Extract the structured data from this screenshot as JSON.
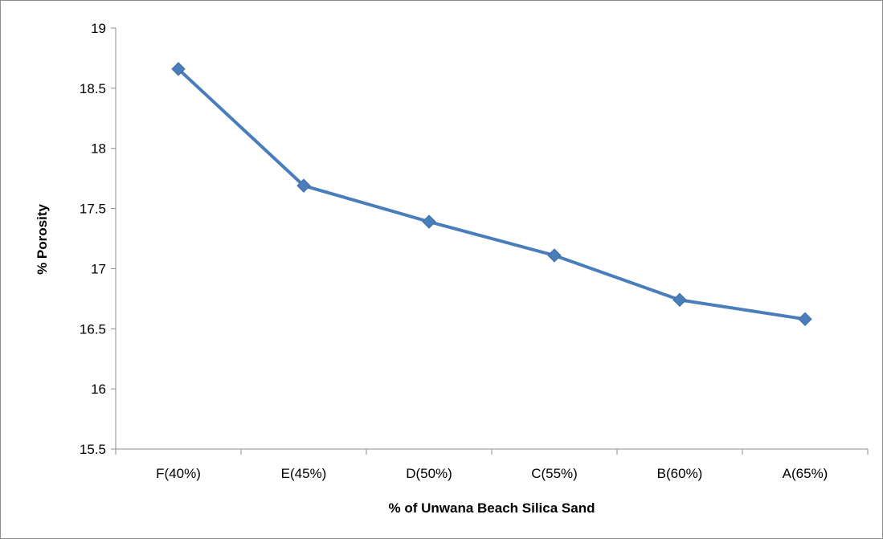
{
  "chart_data": {
    "type": "line",
    "title": "",
    "xlabel": "% of Unwana Beach Silica Sand",
    "ylabel": "% Porosity",
    "categories": [
      "F(40%)",
      "E(45%)",
      "D(50%)",
      "C(55%)",
      "B(60%)",
      "A(65%)"
    ],
    "series": [
      {
        "values": [
          18.66,
          17.69,
          17.39,
          17.11,
          16.74,
          16.58
        ]
      }
    ],
    "ylim": [
      15.5,
      19
    ],
    "yticks": [
      15.5,
      16,
      16.5,
      17,
      17.5,
      18,
      18.5,
      19
    ],
    "ytick_labels": [
      "15.5",
      "16",
      "16.5",
      "17",
      "17.5",
      "18",
      "18.5",
      "19"
    ],
    "grid": false,
    "legend": "none",
    "line_color": "#4a7ebb",
    "marker": "diamond"
  }
}
